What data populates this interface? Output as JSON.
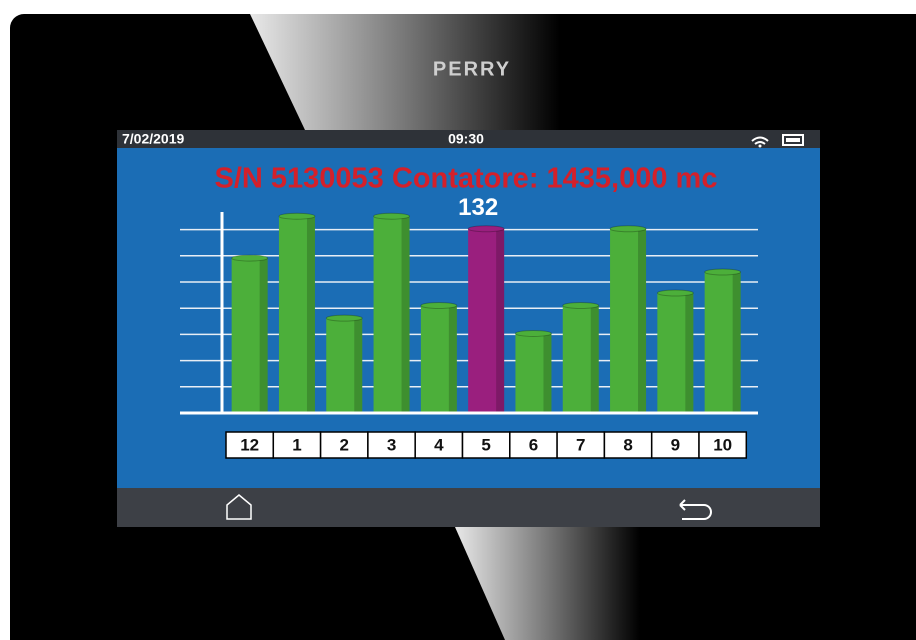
{
  "brand": "PERRY",
  "status_bar": {
    "date": "7/02/2019",
    "time": "09:30"
  },
  "chart_data": {
    "type": "bar",
    "title": "S/N 5130053 Contatore: 1435,000 mc",
    "categories": [
      "12",
      "1",
      "2",
      "3",
      "4",
      "5",
      "6",
      "7",
      "8",
      "9",
      "10"
    ],
    "values": [
      111,
      141,
      68,
      141,
      77,
      132,
      57,
      77,
      132,
      86,
      101
    ],
    "value_labels": [
      null,
      null,
      null,
      null,
      null,
      "132",
      null,
      null,
      null,
      null,
      null
    ],
    "colors": [
      "#4caf3a",
      "#4caf3a",
      "#4caf3a",
      "#4caf3a",
      "#4caf3a",
      "#9a1f7e",
      "#4caf3a",
      "#4caf3a",
      "#4caf3a",
      "#4caf3a",
      "#4caf3a"
    ],
    "ylim": [
      0,
      144
    ]
  }
}
